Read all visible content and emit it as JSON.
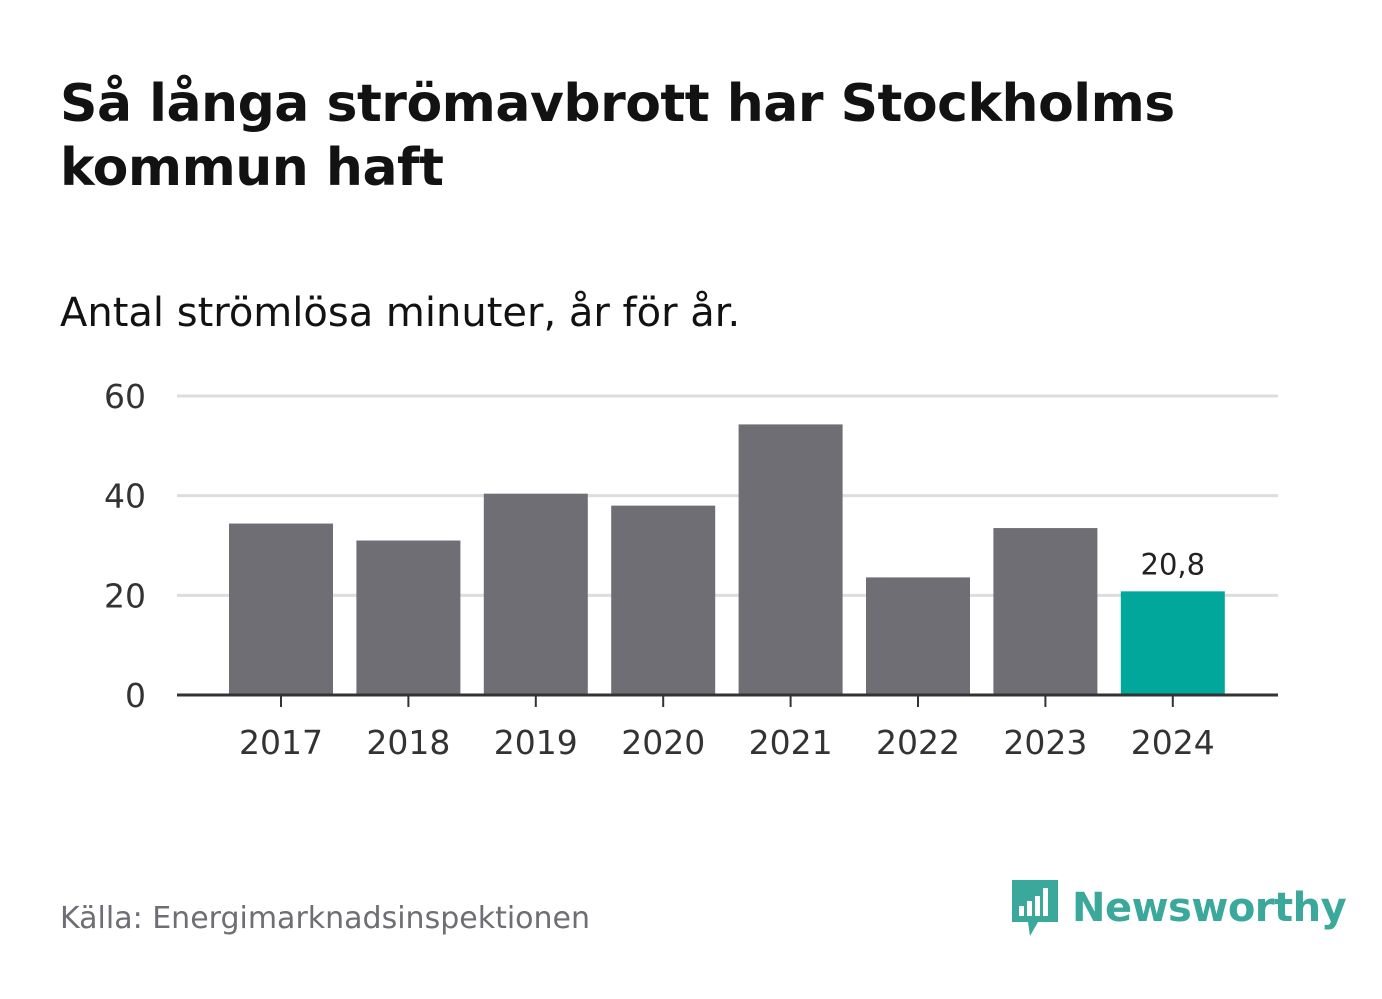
{
  "header": {
    "title": "Så långa strömavbrott har Stockholms kommun haft",
    "subtitle": "Antal strömlösa minuter, år för år."
  },
  "footer": {
    "source": "Källa: Energimarknadsinspektionen",
    "brand": "Newsworthy",
    "brand_icon": "newsworthy-logo-icon"
  },
  "colors": {
    "bar": "#6f6e74",
    "highlight": "#00a79a",
    "grid": "#dddddd",
    "axis": "#333333",
    "brand": "#3aa89a"
  },
  "chart_data": {
    "type": "bar",
    "title": "Så långa strömavbrott har Stockholms kommun haft",
    "subtitle": "Antal strömlösa minuter, år för år.",
    "xlabel": "",
    "ylabel": "",
    "categories": [
      "2017",
      "2018",
      "2019",
      "2020",
      "2021",
      "2022",
      "2023",
      "2024"
    ],
    "values": [
      34.4,
      31.0,
      40.4,
      38.0,
      54.3,
      23.6,
      33.5,
      20.8
    ],
    "highlight_index": 7,
    "data_labels": [
      {
        "index": 7,
        "text": "20,8"
      }
    ],
    "ylim": [
      0,
      60
    ],
    "yticks": [
      0,
      20,
      40,
      60
    ],
    "ytick_labels": [
      "0",
      "20",
      "40",
      "60"
    ],
    "grid": true,
    "legend": "none"
  }
}
